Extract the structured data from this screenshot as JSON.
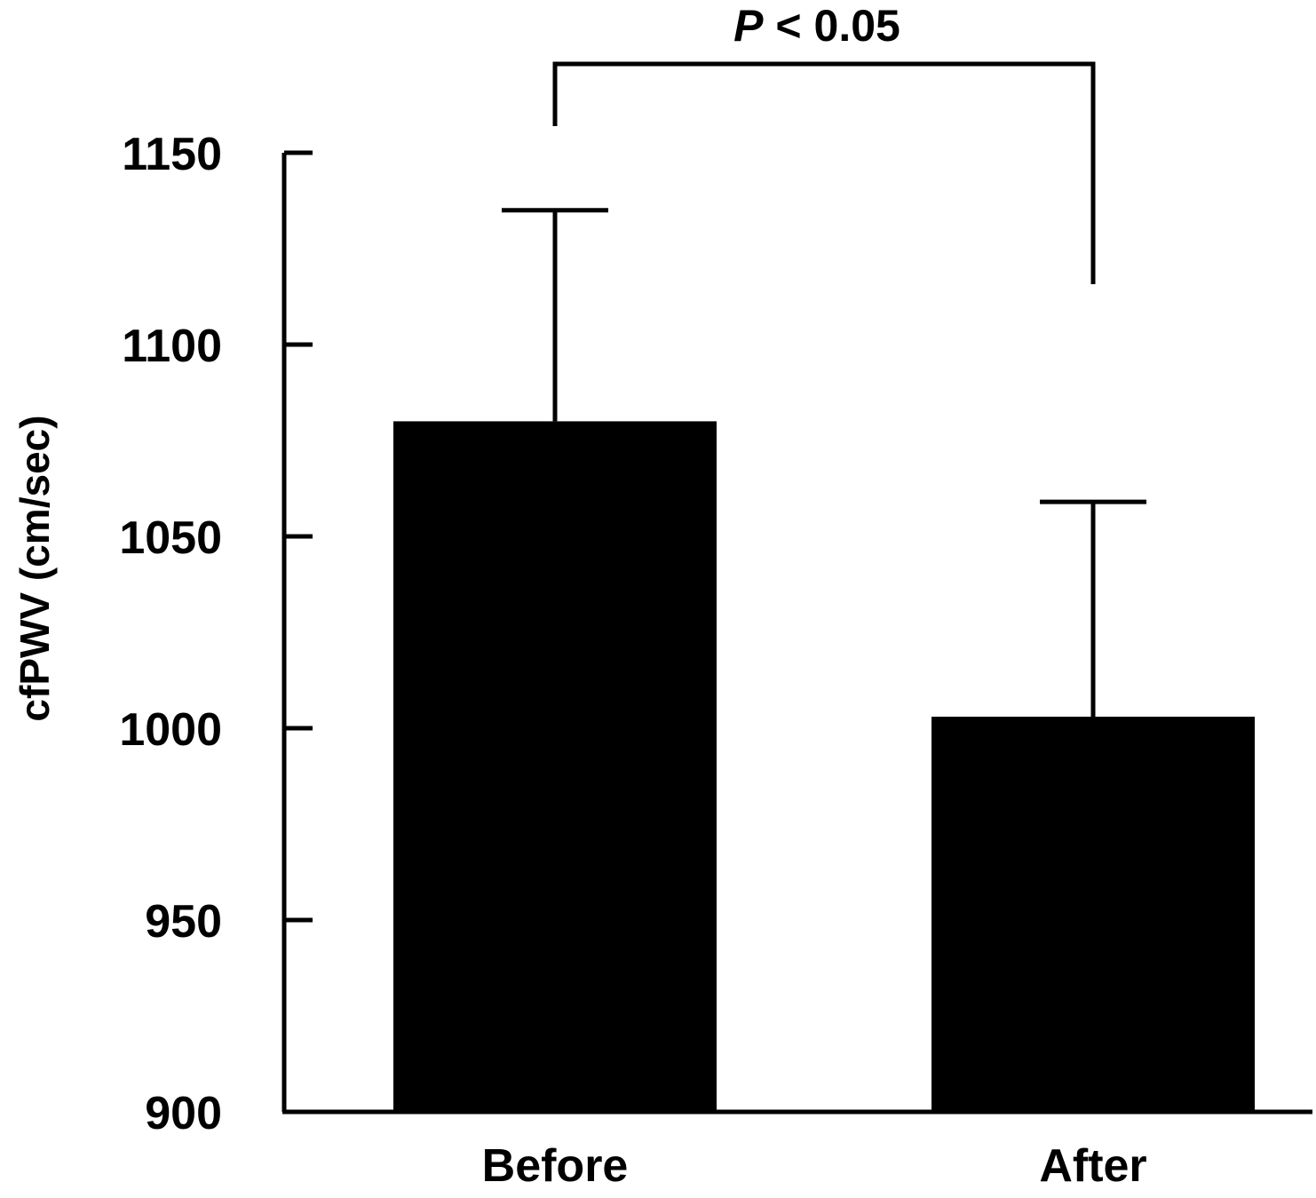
{
  "chart_data": {
    "type": "bar",
    "title": "",
    "xlabel": "",
    "ylabel": "cfPWV (cm/sec)",
    "categories": [
      "Before",
      "After"
    ],
    "values": [
      1080,
      1003
    ],
    "error_bars": [
      55,
      56
    ],
    "ylim": [
      900,
      1150
    ],
    "yticks": [
      900,
      950,
      1000,
      1050,
      1100,
      1150
    ],
    "grid": false,
    "bar_color": "#000000",
    "significance": {
      "symbol": "P",
      "text": " < 0.05",
      "between": [
        "Before",
        "After"
      ]
    }
  }
}
